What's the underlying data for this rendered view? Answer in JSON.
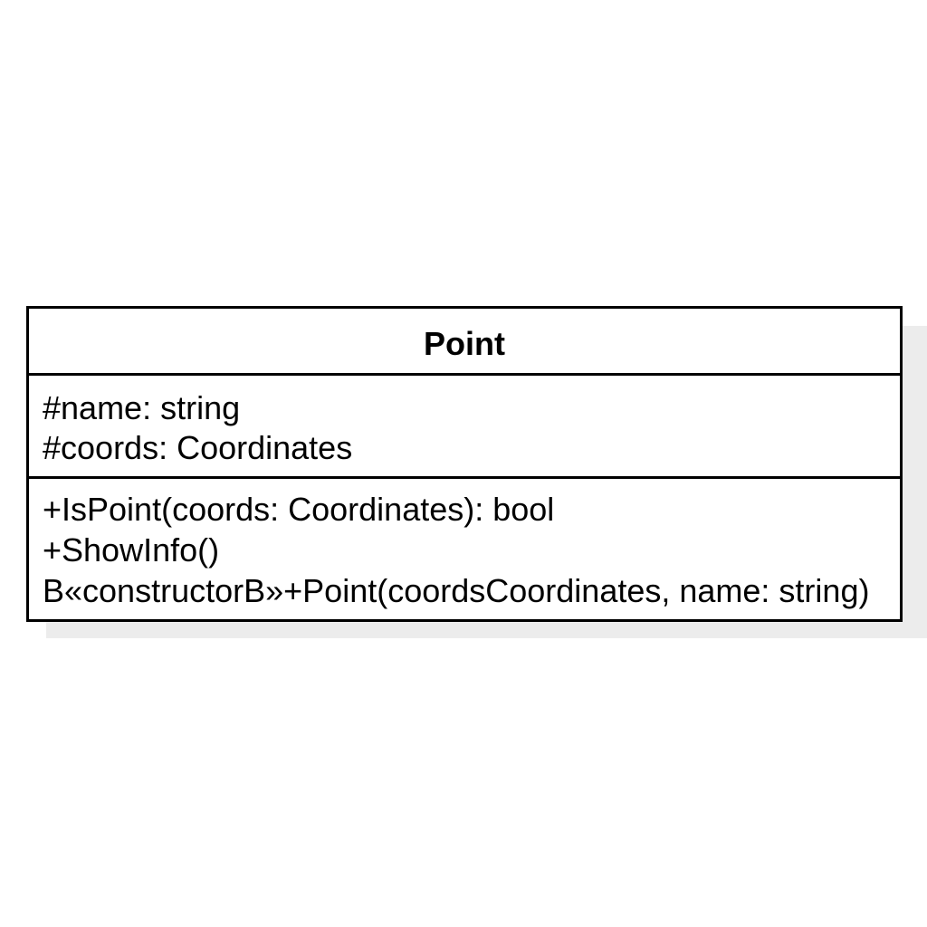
{
  "uml_class": {
    "name": "Point",
    "attributes": [
      "#name: string",
      "#coords: Coordinates"
    ],
    "operations": [
      "+IsPoint(coords: Coordinates): bool",
      "+ShowInfo()",
      "B«constructorB»+Point(coordsCoordinates, name: string)"
    ]
  },
  "colors": {
    "border": "#000000",
    "background": "#ffffff",
    "shadow": "#ececec"
  }
}
